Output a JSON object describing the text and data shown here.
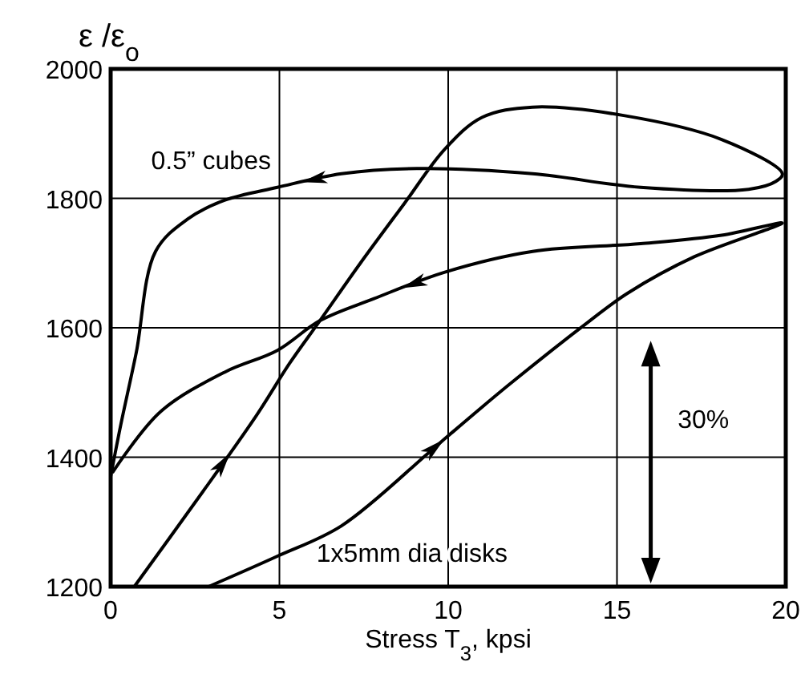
{
  "chart_data": {
    "type": "line",
    "xlabel": "Stress T$_{3}$, kpsi",
    "ylabel": "ε /ε$_{o}$",
    "xlim": [
      0,
      20
    ],
    "ylim": [
      1200,
      2000
    ],
    "xticks": [
      0,
      5,
      10,
      15,
      20
    ],
    "yticks": [
      1200,
      1400,
      1600,
      1800,
      2000
    ],
    "grid": true,
    "line_style": "solid",
    "marker": "none",
    "series": [
      {
        "name": "0.5” cubes",
        "color": "#000000",
        "x": [
          0.7,
          2.5,
          4.3,
          5.3,
          6.2,
          7.4,
          8.7,
          9.9,
          11,
          12.5,
          15.2,
          18.1,
          19.9,
          19.7,
          18.9,
          15.7,
          12.5,
          9.07,
          6.84,
          4.94,
          3.37,
          2.28,
          1.33,
          0.76,
          0.3,
          0
        ],
        "values": [
          1200,
          1330,
          1463,
          1545,
          1611,
          1700,
          1792,
          1876,
          1925,
          1941,
          1928,
          1891,
          1838,
          1826,
          1814,
          1817,
          1838,
          1846,
          1838,
          1817,
          1797,
          1768,
          1718,
          1562,
          1450,
          1370
        ]
      },
      {
        "name": "1x5mm dia disks",
        "color": "#000000",
        "x": [
          2.9,
          4.94,
          6.84,
          9.4,
          10,
          11.8,
          14.2,
          15.3,
          17.3,
          19.9,
          18.1,
          15.7,
          12.5,
          9.9,
          7.8,
          6.2,
          4.94,
          3.4,
          1.47,
          0.05
        ],
        "values": [
          1200,
          1247,
          1294,
          1406,
          1433,
          1512,
          1611,
          1653,
          1710,
          1762,
          1743,
          1730,
          1718,
          1686,
          1645,
          1611,
          1565,
          1532,
          1470,
          1376
        ]
      }
    ],
    "annotations": [
      "30%"
    ]
  }
}
